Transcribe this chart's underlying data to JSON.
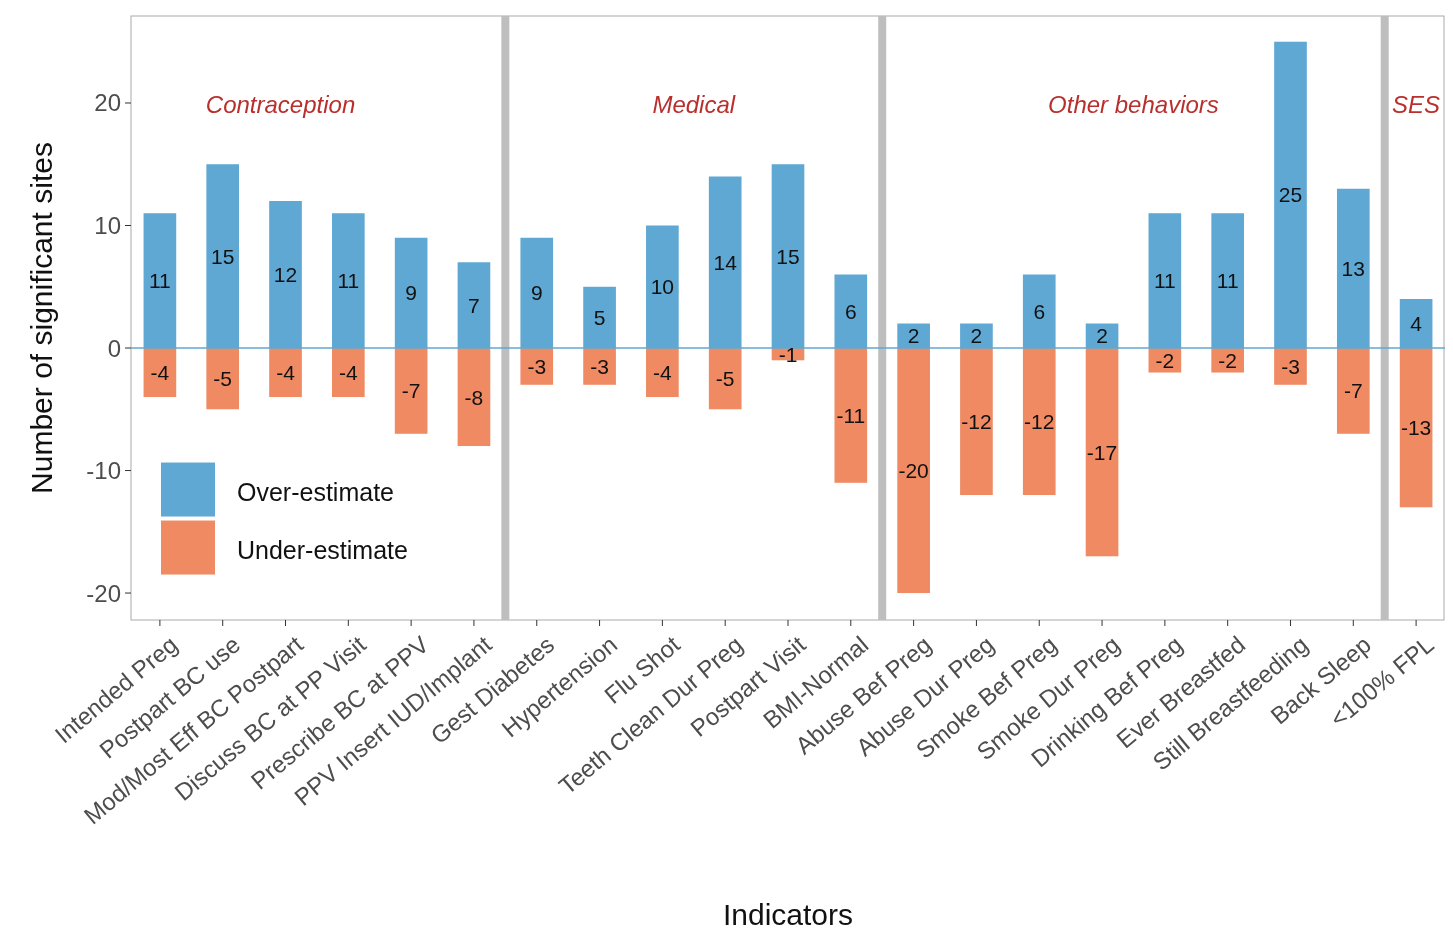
{
  "chart_data": {
    "type": "bar",
    "xlabel": "Indicators",
    "ylabel": "Number of significant sites",
    "categories": [
      "Intended Preg",
      "Postpart BC use",
      "Mod/Most Eff BC Postpart",
      "Discuss BC at PP Visit",
      "Prescribe BC at PPV",
      "PPV Insert IUD/Implant",
      "Gest Diabetes",
      "Hypertension",
      "Flu Shot",
      "Teeth Clean Dur Preg",
      "Postpart Visit",
      "BMI-Normal",
      "Abuse Bef Preg",
      "Abuse Dur Preg",
      "Smoke Bef Preg",
      "Smoke Dur Preg",
      "Drinking Bef Preg",
      "Ever Breastfed",
      "Still Breastfeeding",
      "Back Sleep",
      "<100% FPL"
    ],
    "series": [
      {
        "name": "Over-estimate",
        "color": "#5fa8d3",
        "values": [
          11,
          15,
          12,
          11,
          9,
          7,
          9,
          5,
          10,
          14,
          15,
          6,
          2,
          2,
          6,
          2,
          11,
          11,
          25,
          13,
          4
        ],
        "value_labels": [
          "11",
          "15",
          "12",
          "11",
          "9",
          "7",
          "9",
          "5",
          "10",
          "14",
          "15",
          "6",
          "2",
          "2",
          "6",
          "2",
          "11",
          "11",
          "25",
          "13",
          "4"
        ]
      },
      {
        "name": "Under-estimate",
        "color": "#ef8a62",
        "values": [
          -4,
          -5,
          -4,
          -4,
          -7,
          -8,
          -3,
          -3,
          -4,
          -5,
          -1,
          -11,
          -20,
          -12,
          -12,
          -17,
          -2,
          -2,
          -3,
          -7,
          -13
        ],
        "value_labels": [
          "-4",
          "-5",
          "-4",
          "-4",
          "-7",
          "-8",
          "-3",
          "-3",
          "-4",
          "-5",
          "-1",
          "-11",
          "-20",
          "-12",
          "-12",
          "-17",
          "-2",
          "-2",
          "-3",
          "-7",
          "-13"
        ]
      }
    ],
    "stacked": true,
    "ylim": [
      -22.2,
      27.1
    ],
    "yticks": [
      -20,
      -10,
      0,
      10,
      20
    ],
    "grid": false,
    "legend": "bottom left",
    "ref_lines": [
      {
        "axis": "y",
        "value": 0,
        "color": "#5fa8d3"
      }
    ],
    "annotations": [
      "Contraception",
      "Medical",
      "Other behaviors",
      "SES"
    ]
  }
}
